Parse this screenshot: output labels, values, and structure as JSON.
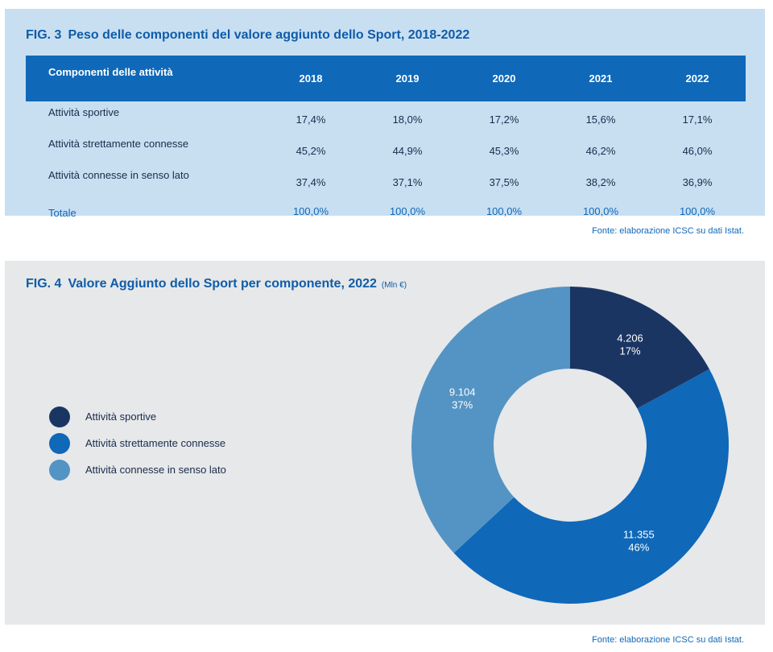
{
  "fig3": {
    "number": "FIG. 3",
    "title": "Peso delle componenti del valore aggiunto dello Sport, 2018-2022",
    "header": [
      "Componenti delle attività",
      "2018",
      "2019",
      "2020",
      "2021",
      "2022"
    ],
    "rows": [
      {
        "label": "Attività sportive",
        "values": [
          "17,4%",
          "18,0%",
          "17,2%",
          "15,6%",
          "17,1%"
        ]
      },
      {
        "label": "Attività strettamente connesse",
        "values": [
          "45,2%",
          "44,9%",
          "45,3%",
          "46,2%",
          "46,0%"
        ]
      },
      {
        "label": "Attività connesse in senso lato",
        "values": [
          "37,4%",
          "37,1%",
          "37,5%",
          "38,2%",
          "36,9%"
        ]
      }
    ],
    "total": {
      "label": "Totale",
      "values": [
        "100,0%",
        "100,0%",
        "100,0%",
        "100,0%",
        "100,0%"
      ]
    },
    "source": "Fonte: elaborazione ICSC su dati Istat."
  },
  "fig4": {
    "number": "FIG. 4",
    "title": "Valore Aggiunto dello Sport per componente, 2022",
    "unit": "(Mln €)",
    "source": "Fonte: elaborazione ICSC su dati Istat."
  },
  "chart_data": {
    "type": "pie",
    "title": "Valore Aggiunto dello Sport per componente, 2022",
    "unit": "Mln €",
    "donut": true,
    "legend_position": "left",
    "slices": [
      {
        "name": "Attività sportive",
        "value": 4206,
        "value_label": "4.206",
        "percent_label": "17%",
        "color": "#1b3563"
      },
      {
        "name": "Attività strettamente connesse",
        "value": 11355,
        "value_label": "11.355",
        "percent_label": "46%",
        "color": "#0f68b8"
      },
      {
        "name": "Attività connesse in senso lato",
        "value": 9104,
        "value_label": "9.104",
        "percent_label": "37%",
        "color": "#5494c4"
      }
    ]
  }
}
